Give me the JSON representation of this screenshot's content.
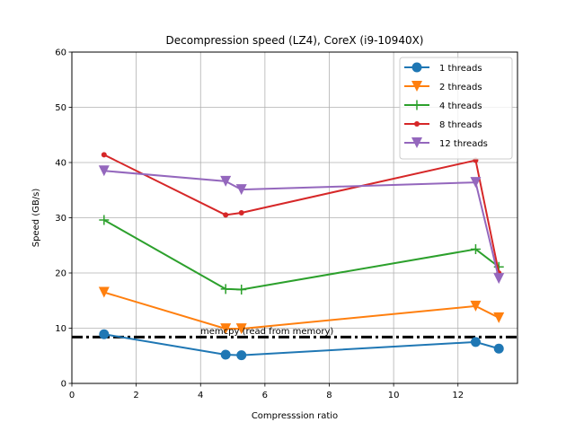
{
  "chart_data": {
    "type": "line",
    "title": "Decompression speed (LZ4), CoreX (i9-10940X)",
    "xlabel": "Compresssion ratio",
    "ylabel": "Speed (GB/s)",
    "xlim": [
      0,
      13.85
    ],
    "ylim": [
      0,
      60
    ],
    "xticks": [
      0,
      2,
      4,
      6,
      8,
      10,
      12
    ],
    "yticks": [
      0,
      10,
      20,
      30,
      40,
      50,
      60
    ],
    "grid": true,
    "legend_position": "top-right",
    "x": [
      1.0,
      4.78,
      5.27,
      12.55,
      13.27
    ],
    "series": [
      {
        "name": "1 threads",
        "color": "#1f77b4",
        "marker": "circle",
        "values": [
          8.9,
          5.2,
          5.1,
          7.5,
          6.3
        ]
      },
      {
        "name": "2 threads",
        "color": "#ff7f0e",
        "marker": "triangle-down",
        "values": [
          16.5,
          9.9,
          9.9,
          14.0,
          11.9
        ]
      },
      {
        "name": "4 threads",
        "color": "#2ca02c",
        "marker": "plus",
        "values": [
          29.6,
          17.1,
          17.0,
          24.3,
          21.1
        ]
      },
      {
        "name": "8 threads",
        "color": "#d62728",
        "marker": "point",
        "values": [
          41.4,
          30.5,
          30.9,
          40.4,
          20.0
        ]
      },
      {
        "name": "12 threads",
        "color": "#9467bd",
        "marker": "triangle-down",
        "values": [
          38.5,
          36.6,
          35.1,
          36.4,
          19.0
        ]
      }
    ],
    "reference_line": {
      "label": "memcpy (read from memory)",
      "y": 8.4,
      "color": "#000000",
      "style": "dash-dot"
    }
  }
}
